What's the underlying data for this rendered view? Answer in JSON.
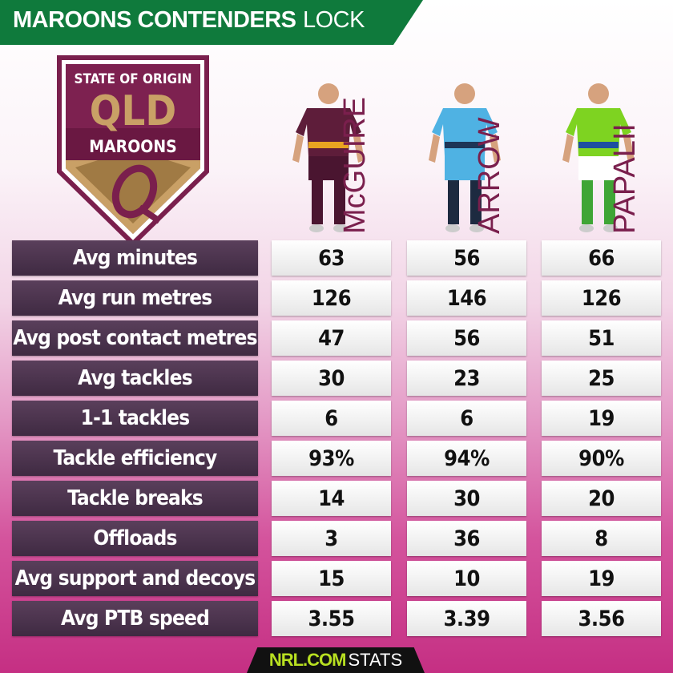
{
  "title": {
    "bold": "MAROONS CONTENDERS",
    "light": "LOCK"
  },
  "logo": {
    "top": "STATE OF ORIGIN",
    "main": "QLD",
    "bottom": "MAROONS"
  },
  "colors": {
    "banner": "#0f7a3c",
    "maroon": "#7a1f4d",
    "label_bg": "#4b344e",
    "nrl_green": "#b8e021"
  },
  "players": [
    {
      "name": "McGUIRE",
      "jersey": "#5e1d3a",
      "trim": "#e8a421",
      "shorts": "#4a1530",
      "socks": "#4a1530"
    },
    {
      "name": "ARROW",
      "jersey": "#4fb2e3",
      "trim": "#1d3557",
      "shorts": "#4fb2e3",
      "socks": "#1d2a40"
    },
    {
      "name": "PAPALII",
      "jersey": "#7ed321",
      "trim": "#1d4fa0",
      "shorts": "#ffffff",
      "socks": "#3fa535"
    }
  ],
  "stats": [
    {
      "label": "Avg minutes",
      "values": [
        "63",
        "56",
        "66"
      ]
    },
    {
      "label": "Avg run metres",
      "values": [
        "126",
        "146",
        "126"
      ]
    },
    {
      "label": "Avg post contact metres",
      "values": [
        "47",
        "56",
        "51"
      ]
    },
    {
      "label": "Avg tackles",
      "values": [
        "30",
        "23",
        "25"
      ]
    },
    {
      "label": "1-1 tackles",
      "values": [
        "6",
        "6",
        "19"
      ]
    },
    {
      "label": "Tackle efficiency",
      "values": [
        "93%",
        "94%",
        "90%"
      ]
    },
    {
      "label": "Tackle breaks",
      "values": [
        "14",
        "30",
        "20"
      ]
    },
    {
      "label": "Offloads",
      "values": [
        "3",
        "36",
        "8"
      ]
    },
    {
      "label": "Avg support and decoys",
      "values": [
        "15",
        "10",
        "19"
      ]
    },
    {
      "label": "Avg PTB speed",
      "values": [
        "3.55",
        "3.39",
        "3.56"
      ]
    }
  ],
  "footer": {
    "brand": "NRL.COM",
    "suffix": "STATS"
  }
}
